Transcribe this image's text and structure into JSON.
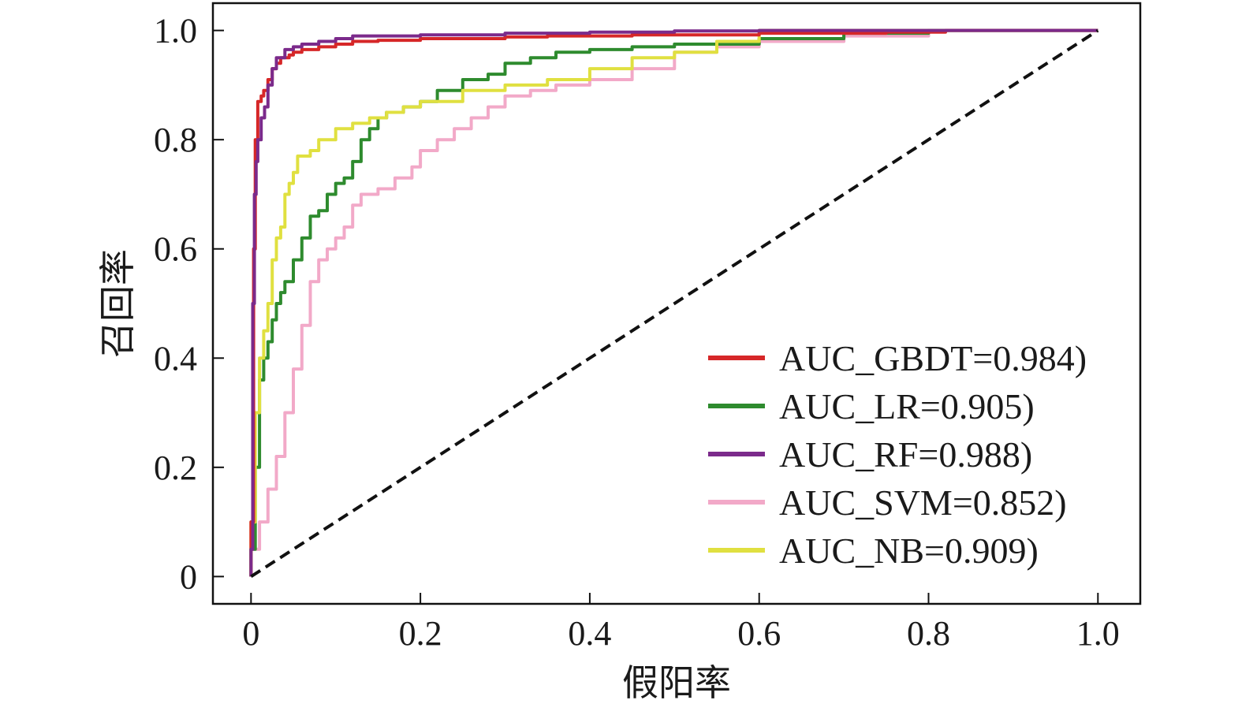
{
  "chart_data": {
    "type": "line",
    "title": "",
    "xlabel": "假阳率",
    "ylabel": "召回率",
    "xlim": [
      -0.045,
      1.05
    ],
    "ylim": [
      -0.05,
      1.05
    ],
    "xticks": [
      0,
      0.2,
      0.4,
      0.6,
      0.8,
      1.0
    ],
    "xtick_labels": [
      "0",
      "0.2",
      "0.4",
      "0.6",
      "0.8",
      "1.0"
    ],
    "yticks": [
      0,
      0.2,
      0.4,
      0.6,
      0.8,
      1.0
    ],
    "ytick_labels": [
      "0",
      "0.2",
      "0.4",
      "0.6",
      "0.8",
      "1.0"
    ],
    "grid": false,
    "legend_position": "lower-right",
    "series": [
      {
        "name": "AUC_GBDT=0.984)",
        "color": "#d62728",
        "x": [
          0,
          0.003,
          0.003,
          0.005,
          0.005,
          0.008,
          0.008,
          0.012,
          0.015,
          0.02,
          0.025,
          0.03,
          0.035,
          0.045,
          0.05,
          0.06,
          0.08,
          0.1,
          0.12,
          0.15,
          0.2,
          0.3,
          0.35,
          0.45,
          0.6,
          0.75,
          0.82,
          1.0
        ],
        "y": [
          0,
          0.1,
          0.48,
          0.6,
          0.78,
          0.8,
          0.84,
          0.87,
          0.88,
          0.89,
          0.91,
          0.93,
          0.94,
          0.95,
          0.955,
          0.96,
          0.965,
          0.97,
          0.975,
          0.98,
          0.982,
          0.985,
          0.988,
          0.99,
          0.992,
          0.995,
          0.997,
          1.0
        ]
      },
      {
        "name": "AUC_LR=0.905)",
        "color": "#2e8b2e",
        "x": [
          0,
          0.005,
          0.005,
          0.01,
          0.01,
          0.015,
          0.02,
          0.025,
          0.03,
          0.035,
          0.04,
          0.05,
          0.06,
          0.07,
          0.08,
          0.09,
          0.1,
          0.11,
          0.12,
          0.13,
          0.14,
          0.15,
          0.16,
          0.18,
          0.2,
          0.22,
          0.25,
          0.28,
          0.3,
          0.33,
          0.36,
          0.4,
          0.45,
          0.5,
          0.6,
          0.7,
          0.8,
          1.0
        ],
        "y": [
          0,
          0.05,
          0.12,
          0.2,
          0.3,
          0.36,
          0.4,
          0.43,
          0.47,
          0.5,
          0.52,
          0.54,
          0.58,
          0.62,
          0.66,
          0.67,
          0.7,
          0.72,
          0.73,
          0.76,
          0.8,
          0.82,
          0.84,
          0.85,
          0.86,
          0.87,
          0.89,
          0.91,
          0.92,
          0.94,
          0.95,
          0.96,
          0.965,
          0.97,
          0.975,
          0.985,
          0.995,
          1.0
        ]
      },
      {
        "name": "AUC_RF=0.988)",
        "color": "#7b2a8b",
        "x": [
          0,
          0.002,
          0.002,
          0.004,
          0.004,
          0.006,
          0.008,
          0.012,
          0.016,
          0.02,
          0.025,
          0.03,
          0.04,
          0.05,
          0.06,
          0.08,
          0.1,
          0.12,
          0.15,
          0.2,
          0.3,
          0.4,
          0.5,
          0.6,
          0.63,
          1.0
        ],
        "y": [
          0,
          0.05,
          0.3,
          0.5,
          0.64,
          0.7,
          0.76,
          0.8,
          0.84,
          0.86,
          0.9,
          0.93,
          0.95,
          0.965,
          0.97,
          0.975,
          0.98,
          0.985,
          0.99,
          0.99,
          0.992,
          0.995,
          0.997,
          0.999,
          1.0,
          1.0
        ]
      },
      {
        "name": "AUC_SVM=0.852)",
        "color": "#f2a9c8",
        "x": [
          0,
          0.01,
          0.02,
          0.03,
          0.04,
          0.05,
          0.06,
          0.07,
          0.08,
          0.09,
          0.1,
          0.11,
          0.12,
          0.13,
          0.15,
          0.17,
          0.19,
          0.2,
          0.22,
          0.24,
          0.26,
          0.28,
          0.3,
          0.33,
          0.36,
          0.4,
          0.45,
          0.5,
          0.55,
          0.6,
          0.7,
          0.8,
          1.0
        ],
        "y": [
          0,
          0.05,
          0.1,
          0.16,
          0.22,
          0.3,
          0.38,
          0.46,
          0.54,
          0.58,
          0.6,
          0.62,
          0.64,
          0.68,
          0.7,
          0.71,
          0.73,
          0.75,
          0.78,
          0.8,
          0.82,
          0.84,
          0.86,
          0.88,
          0.89,
          0.9,
          0.91,
          0.93,
          0.96,
          0.97,
          0.98,
          0.99,
          1.0
        ]
      },
      {
        "name": "AUC_NB=0.909)",
        "color": "#e0e040",
        "x": [
          0,
          0.005,
          0.01,
          0.015,
          0.02,
          0.025,
          0.03,
          0.035,
          0.04,
          0.045,
          0.05,
          0.055,
          0.06,
          0.07,
          0.08,
          0.1,
          0.12,
          0.14,
          0.16,
          0.18,
          0.2,
          0.25,
          0.3,
          0.35,
          0.4,
          0.45,
          0.5,
          0.55,
          0.6,
          0.62,
          0.7,
          0.8,
          1.0
        ],
        "y": [
          0,
          0.1,
          0.3,
          0.4,
          0.45,
          0.5,
          0.58,
          0.62,
          0.64,
          0.7,
          0.72,
          0.74,
          0.77,
          0.77,
          0.78,
          0.8,
          0.82,
          0.83,
          0.84,
          0.85,
          0.86,
          0.87,
          0.89,
          0.9,
          0.91,
          0.93,
          0.95,
          0.96,
          0.98,
          1.0,
          1.0,
          1.0,
          1.0
        ]
      }
    ],
    "reference_line": {
      "style": "dashed",
      "color": "#111111",
      "x": [
        0,
        1.0
      ],
      "y": [
        0,
        1.0
      ]
    }
  }
}
